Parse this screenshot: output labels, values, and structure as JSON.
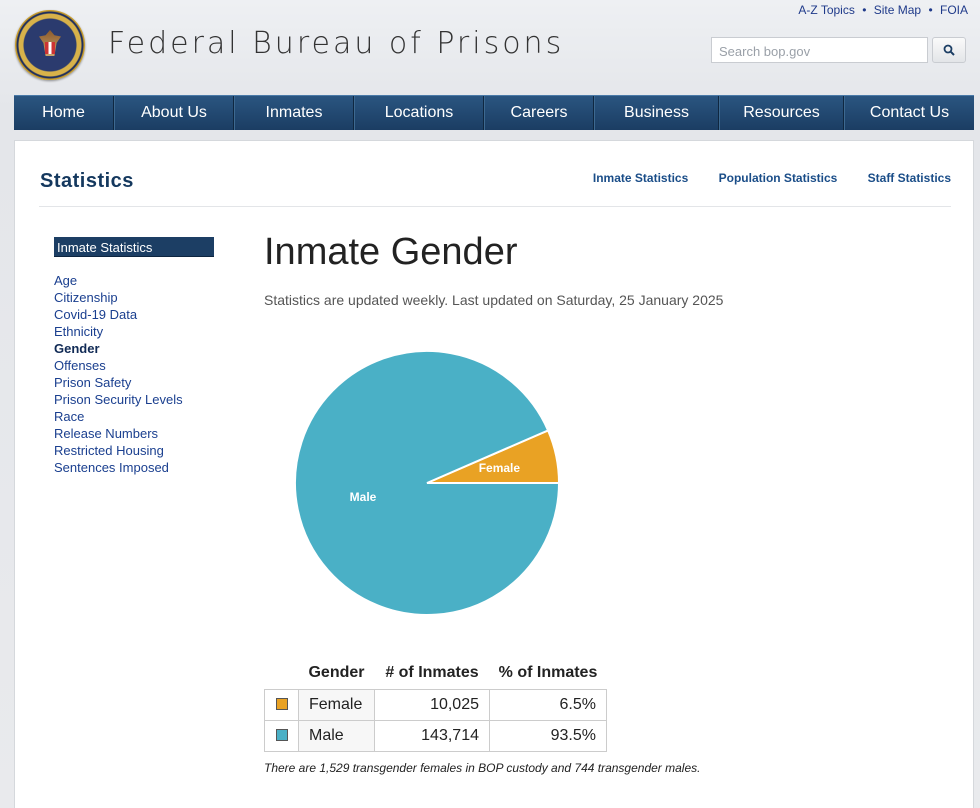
{
  "header": {
    "site_title": "Federal Bureau of Prisons",
    "util_links": [
      "A-Z Topics",
      "Site Map",
      "FOIA"
    ],
    "search_placeholder": "Search bop.gov"
  },
  "nav": [
    "Home",
    "About Us",
    "Inmates",
    "Locations",
    "Careers",
    "Business",
    "Resources",
    "Contact Us"
  ],
  "section": {
    "title": "Statistics",
    "sub_links": [
      "Inmate Statistics",
      "Population Statistics",
      "Staff Statistics"
    ]
  },
  "sidebar": {
    "heading": "Inmate Statistics",
    "items": [
      {
        "label": "Age",
        "active": false
      },
      {
        "label": "Citizenship",
        "active": false
      },
      {
        "label": "Covid-19 Data",
        "active": false
      },
      {
        "label": "Ethnicity",
        "active": false
      },
      {
        "label": "Gender",
        "active": true
      },
      {
        "label": "Offenses",
        "active": false
      },
      {
        "label": "Prison Safety",
        "active": false
      },
      {
        "label": "Prison Security Levels",
        "active": false
      },
      {
        "label": "Race",
        "active": false
      },
      {
        "label": "Release Numbers",
        "active": false
      },
      {
        "label": "Restricted Housing",
        "active": false
      },
      {
        "label": "Sentences Imposed",
        "active": false
      }
    ]
  },
  "main": {
    "title": "Inmate Gender",
    "updated": "Statistics are updated weekly. Last updated on Saturday, 25 January 2025",
    "table": {
      "headers": [
        "Gender",
        "# of Inmates",
        "% of Inmates"
      ],
      "rows": [
        {
          "gender": "Female",
          "count": "10,025",
          "percent": "6.5%",
          "color": "#e9a224"
        },
        {
          "gender": "Male",
          "count": "143,714",
          "percent": "93.5%",
          "color": "#4ab0c6"
        }
      ]
    },
    "note": "There are 1,529 transgender females in BOP custody and 744 transgender males."
  },
  "chart_data": {
    "type": "pie",
    "categories": [
      "Female",
      "Male"
    ],
    "values": [
      10025,
      143714
    ],
    "colors": [
      "#e9a224",
      "#4ab0c6"
    ],
    "title": ""
  }
}
